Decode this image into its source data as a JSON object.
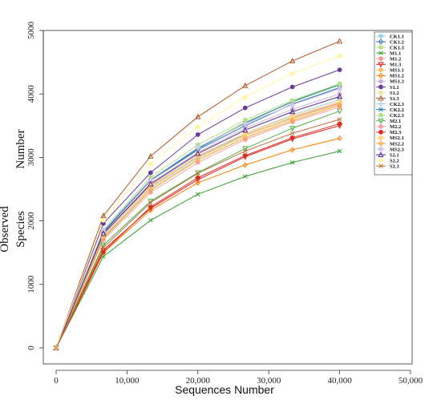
{
  "chart_data": {
    "type": "line",
    "xlabel": "Sequences Number",
    "ylabel_lines": [
      "Observed",
      "Species",
      "Number"
    ],
    "xlim": [
      0,
      50000
    ],
    "ylim": [
      0,
      5000
    ],
    "xticks": [
      0,
      10000,
      20000,
      30000,
      40000,
      50000
    ],
    "xtick_labels": [
      "0",
      "10,000",
      "20,000",
      "30,000",
      "40,000",
      "50,000"
    ],
    "yticks": [
      0,
      1000,
      2000,
      3000,
      4000,
      5000
    ],
    "ytick_labels": [
      "0",
      "1000",
      "2000",
      "3000",
      "4000",
      "5000"
    ],
    "grid": false,
    "legend_position": "right",
    "x": [
      0,
      6667,
      13333,
      20000,
      26667,
      33333,
      40000
    ],
    "series": [
      {
        "name": "CK1.1",
        "color": "#9fd3e6",
        "marker": "o",
        "values": [
          0,
          1760,
          2560,
          3020,
          3350,
          3620,
          3850
        ]
      },
      {
        "name": "CK1.2",
        "color": "#2f76b5",
        "marker": "diamond",
        "values": [
          0,
          1820,
          2640,
          3120,
          3500,
          3840,
          4100
        ]
      },
      {
        "name": "CK1.3",
        "color": "#b8e186",
        "marker": "o",
        "values": [
          0,
          1830,
          2660,
          3150,
          3560,
          3870,
          4140
        ]
      },
      {
        "name": "M1.1",
        "color": "#33a02c",
        "marker": "x",
        "values": [
          0,
          1440,
          2010,
          2420,
          2700,
          2920,
          3100
        ]
      },
      {
        "name": "M1.2",
        "color": "#fb9a99",
        "marker": "o",
        "values": [
          0,
          1800,
          2560,
          3020,
          3360,
          3630,
          3860
        ]
      },
      {
        "name": "M1.3",
        "color": "#e31a1c",
        "marker": "tri-down",
        "values": [
          0,
          1540,
          2200,
          2650,
          3010,
          3290,
          3500
        ]
      },
      {
        "name": "MS1.1",
        "color": "#fdbf6f",
        "marker": "o",
        "values": [
          0,
          1780,
          2540,
          3000,
          3340,
          3610,
          3840
        ]
      },
      {
        "name": "MS1.2",
        "color": "#ff7f00",
        "marker": "diamond",
        "values": [
          0,
          1500,
          2170,
          2600,
          2880,
          3120,
          3300
        ]
      },
      {
        "name": "MS1.3",
        "color": "#cab2d6",
        "marker": "o",
        "values": [
          0,
          1790,
          2600,
          3080,
          3460,
          3760,
          4000
        ]
      },
      {
        "name": "S1.1",
        "color": "#6a3d9a",
        "marker": "o",
        "values": [
          0,
          1960,
          2760,
          3360,
          3780,
          4110,
          4380
        ]
      },
      {
        "name": "S1.2",
        "color": "#e8e8a0",
        "marker": "o",
        "values": [
          0,
          1720,
          2480,
          2980,
          3340,
          3640,
          3880
        ]
      },
      {
        "name": "S1.3",
        "color": "#b15928",
        "marker": "tri-up",
        "values": [
          0,
          2080,
          3020,
          3640,
          4130,
          4520,
          4830
        ]
      },
      {
        "name": "CK2.3",
        "color": "#a6cee3",
        "marker": "diamond",
        "values": [
          0,
          1740,
          2520,
          3000,
          3380,
          3670,
          3910
        ]
      },
      {
        "name": "CK2.2",
        "color": "#1f78b4",
        "marker": "x",
        "values": [
          0,
          1830,
          2640,
          3140,
          3540,
          3880,
          4150
        ]
      },
      {
        "name": "CK2.3",
        "color": "#b2df8a",
        "marker": "o",
        "values": [
          0,
          1860,
          2690,
          3200,
          3590,
          3900,
          4160
        ]
      },
      {
        "name": "M2.1",
        "color": "#4daf4a",
        "marker": "tri-down",
        "values": [
          0,
          1620,
          2310,
          2760,
          3140,
          3460,
          3730
        ]
      },
      {
        "name": "M2.2",
        "color": "#f4a3a8",
        "marker": "o",
        "values": [
          0,
          1700,
          2450,
          2920,
          3280,
          3560,
          3790
        ]
      },
      {
        "name": "M2.3",
        "color": "#d7301f",
        "marker": "o",
        "values": [
          0,
          1510,
          2220,
          2680,
          3030,
          3310,
          3530
        ]
      },
      {
        "name": "MS2.1",
        "color": "#ffd27f",
        "marker": "o",
        "values": [
          0,
          1770,
          2550,
          3030,
          3380,
          3650,
          3880
        ]
      },
      {
        "name": "MS2.2",
        "color": "#ff9f1c",
        "marker": "diamond",
        "values": [
          0,
          1730,
          2490,
          2960,
          3310,
          3580,
          3820
        ]
      },
      {
        "name": "MS2.3",
        "color": "#d4c4e6",
        "marker": "o",
        "values": [
          0,
          1860,
          2650,
          3160,
          3530,
          3830,
          4080
        ]
      },
      {
        "name": "S2.1",
        "color": "#54278f",
        "marker": "tri-up",
        "values": [
          0,
          1800,
          2580,
          3060,
          3430,
          3720,
          3960
        ]
      },
      {
        "name": "S2.2",
        "color": "#fff5a0",
        "marker": "o",
        "values": [
          0,
          2010,
          2900,
          3480,
          3950,
          4320,
          4600
        ]
      },
      {
        "name": "S2.3",
        "color": "#c0703a",
        "marker": "x",
        "values": [
          0,
          1580,
          2290,
          2750,
          3100,
          3380,
          3600
        ]
      }
    ]
  }
}
